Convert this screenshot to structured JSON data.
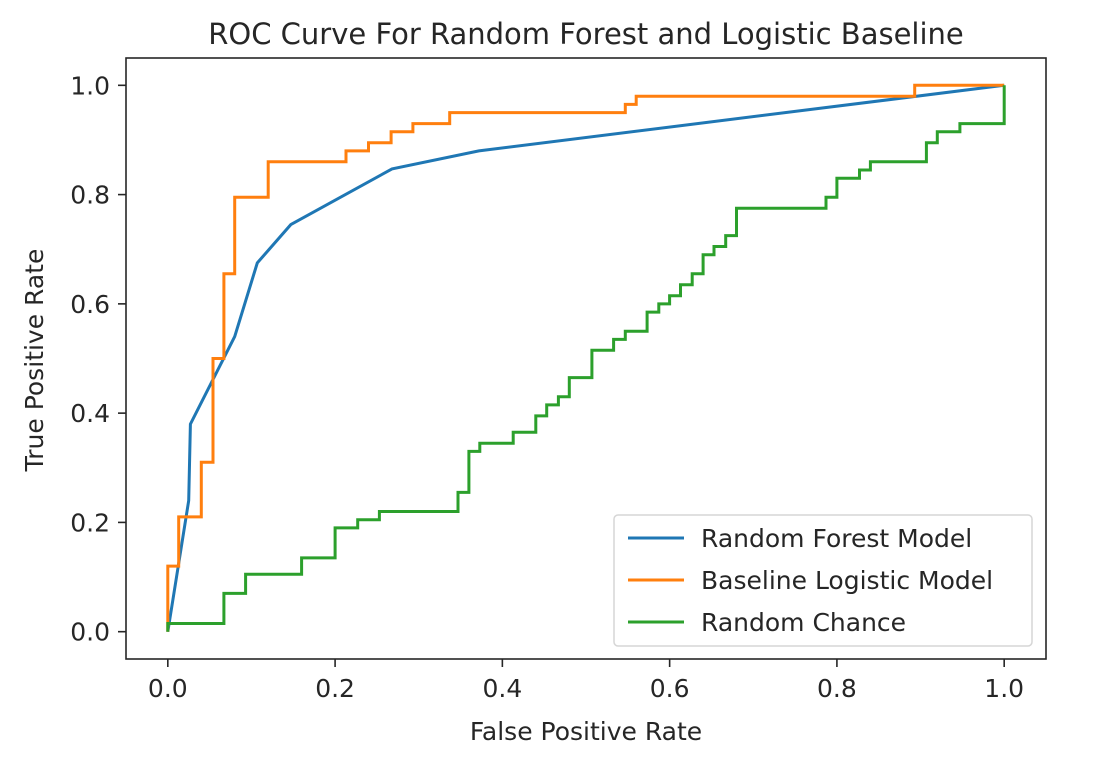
{
  "chart_data": {
    "type": "line",
    "title": "ROC Curve For Random Forest and Logistic Baseline",
    "xlabel": "False Positive Rate",
    "ylabel": "True Positive Rate",
    "xlim": [
      -0.05,
      1.05
    ],
    "ylim": [
      -0.05,
      1.05
    ],
    "xticks": [
      0.0,
      0.2,
      0.4,
      0.6,
      0.8,
      1.0
    ],
    "yticks": [
      0.0,
      0.2,
      0.4,
      0.6,
      0.8,
      1.0
    ],
    "xtick_labels": [
      "0.0",
      "0.2",
      "0.4",
      "0.6",
      "0.8",
      "1.0"
    ],
    "ytick_labels": [
      "0.0",
      "0.2",
      "0.4",
      "0.6",
      "0.8",
      "1.0"
    ],
    "grid": false,
    "legend_position": "lower-right",
    "series": [
      {
        "name": "Random Forest Model",
        "color": "#1f77b4",
        "points": [
          [
            0.0,
            0.0
          ],
          [
            0.025,
            0.24
          ],
          [
            0.027,
            0.38
          ],
          [
            0.08,
            0.54
          ],
          [
            0.107,
            0.675
          ],
          [
            0.147,
            0.745
          ],
          [
            0.268,
            0.847
          ],
          [
            0.372,
            0.88
          ],
          [
            1.0,
            1.0
          ]
        ]
      },
      {
        "name": "Baseline Logistic Model",
        "color": "#ff7f0e",
        "points": [
          [
            0.0,
            0.0
          ],
          [
            0.0,
            0.12
          ],
          [
            0.013,
            0.12
          ],
          [
            0.013,
            0.21
          ],
          [
            0.04,
            0.21
          ],
          [
            0.04,
            0.31
          ],
          [
            0.054,
            0.31
          ],
          [
            0.054,
            0.5
          ],
          [
            0.067,
            0.5
          ],
          [
            0.067,
            0.655
          ],
          [
            0.08,
            0.655
          ],
          [
            0.08,
            0.795
          ],
          [
            0.12,
            0.795
          ],
          [
            0.12,
            0.86
          ],
          [
            0.213,
            0.86
          ],
          [
            0.213,
            0.88
          ],
          [
            0.24,
            0.88
          ],
          [
            0.24,
            0.895
          ],
          [
            0.267,
            0.895
          ],
          [
            0.267,
            0.915
          ],
          [
            0.293,
            0.915
          ],
          [
            0.293,
            0.93
          ],
          [
            0.337,
            0.93
          ],
          [
            0.337,
            0.95
          ],
          [
            0.547,
            0.95
          ],
          [
            0.547,
            0.965
          ],
          [
            0.56,
            0.965
          ],
          [
            0.56,
            0.98
          ],
          [
            0.893,
            0.98
          ],
          [
            0.893,
            1.0
          ],
          [
            1.0,
            1.0
          ]
        ]
      },
      {
        "name": "Random Chance",
        "color": "#2ca02c",
        "points": [
          [
            0.0,
            0.0
          ],
          [
            0.0,
            0.015
          ],
          [
            0.067,
            0.015
          ],
          [
            0.067,
            0.07
          ],
          [
            0.093,
            0.07
          ],
          [
            0.093,
            0.105
          ],
          [
            0.16,
            0.105
          ],
          [
            0.16,
            0.135
          ],
          [
            0.2,
            0.135
          ],
          [
            0.2,
            0.19
          ],
          [
            0.227,
            0.19
          ],
          [
            0.227,
            0.205
          ],
          [
            0.253,
            0.205
          ],
          [
            0.253,
            0.22
          ],
          [
            0.347,
            0.22
          ],
          [
            0.347,
            0.255
          ],
          [
            0.36,
            0.255
          ],
          [
            0.36,
            0.33
          ],
          [
            0.373,
            0.33
          ],
          [
            0.373,
            0.345
          ],
          [
            0.413,
            0.345
          ],
          [
            0.413,
            0.365
          ],
          [
            0.44,
            0.365
          ],
          [
            0.44,
            0.395
          ],
          [
            0.453,
            0.395
          ],
          [
            0.453,
            0.415
          ],
          [
            0.467,
            0.415
          ],
          [
            0.467,
            0.43
          ],
          [
            0.48,
            0.43
          ],
          [
            0.48,
            0.465
          ],
          [
            0.507,
            0.465
          ],
          [
            0.507,
            0.515
          ],
          [
            0.533,
            0.515
          ],
          [
            0.533,
            0.535
          ],
          [
            0.547,
            0.535
          ],
          [
            0.547,
            0.55
          ],
          [
            0.573,
            0.55
          ],
          [
            0.573,
            0.585
          ],
          [
            0.587,
            0.585
          ],
          [
            0.587,
            0.6
          ],
          [
            0.6,
            0.6
          ],
          [
            0.6,
            0.615
          ],
          [
            0.613,
            0.615
          ],
          [
            0.613,
            0.635
          ],
          [
            0.627,
            0.635
          ],
          [
            0.627,
            0.655
          ],
          [
            0.64,
            0.655
          ],
          [
            0.64,
            0.69
          ],
          [
            0.653,
            0.69
          ],
          [
            0.653,
            0.705
          ],
          [
            0.667,
            0.705
          ],
          [
            0.667,
            0.725
          ],
          [
            0.68,
            0.725
          ],
          [
            0.68,
            0.775
          ],
          [
            0.787,
            0.775
          ],
          [
            0.787,
            0.795
          ],
          [
            0.8,
            0.795
          ],
          [
            0.8,
            0.83
          ],
          [
            0.827,
            0.83
          ],
          [
            0.827,
            0.845
          ],
          [
            0.84,
            0.845
          ],
          [
            0.84,
            0.86
          ],
          [
            0.907,
            0.86
          ],
          [
            0.907,
            0.895
          ],
          [
            0.92,
            0.895
          ],
          [
            0.92,
            0.915
          ],
          [
            0.947,
            0.915
          ],
          [
            0.947,
            0.93
          ],
          [
            0.987,
            0.93
          ],
          [
            0.987,
            0.93
          ],
          [
            1.0,
            0.93
          ],
          [
            1.0,
            1.0
          ]
        ]
      }
    ]
  }
}
